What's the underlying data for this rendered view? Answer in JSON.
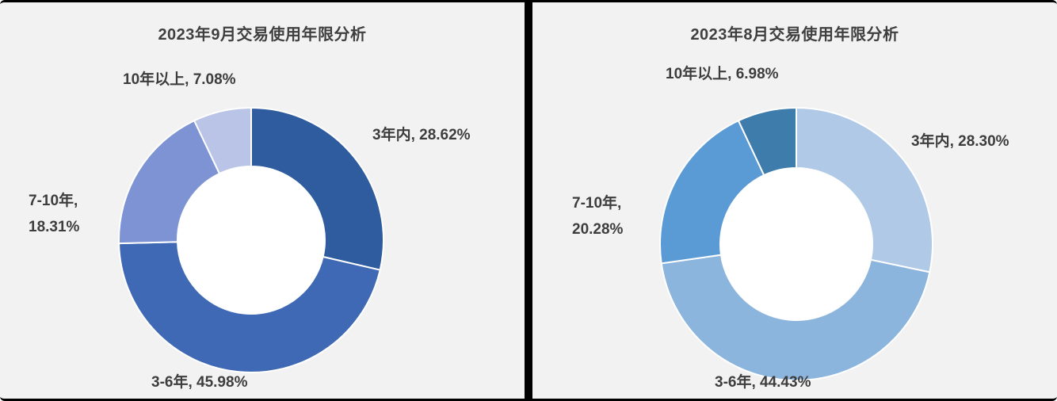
{
  "divider_color": "#000000",
  "background_color": "#f2f2f2",
  "chart_data": [
    {
      "type": "pie",
      "donut": true,
      "title": "2023年9月交易使用年限分析",
      "categories": [
        "3年内",
        "3-6年",
        "7-10年",
        "10年以上"
      ],
      "values": [
        28.62,
        45.98,
        18.31,
        7.08
      ],
      "labels": [
        "3年内, 28.62%",
        "3-6年, 45.98%",
        "7-10年, 18.31%",
        "10年以上, 7.08%"
      ],
      "colors": [
        "#2e5c9e",
        "#3f69b4",
        "#7e93d4",
        "#b9c4e7"
      ],
      "start_angle_deg": 0,
      "direction": "clockwise",
      "callouts": {
        "seg1": "3年内, 28.62%",
        "seg2": "3-6年, 45.98%",
        "seg3_line1": "7-10年,",
        "seg3_line2": "18.31%",
        "seg4": "10年以上, 7.08%"
      }
    },
    {
      "type": "pie",
      "donut": true,
      "title": "2023年8月交易使用年限分析",
      "categories": [
        "3年内",
        "3-6年",
        "7-10年",
        "10年以上"
      ],
      "values": [
        28.3,
        44.43,
        20.28,
        6.98
      ],
      "labels": [
        "3年内, 28.30%",
        "3-6年, 44.43%",
        "7-10年, 20.28%",
        "10年以上, 6.98%"
      ],
      "colors": [
        "#afc9e7",
        "#8bb5dc",
        "#5b9bd5",
        "#3e7cab"
      ],
      "start_angle_deg": 0,
      "direction": "clockwise",
      "callouts": {
        "seg1": "3年内, 28.30%",
        "seg2": "3-6年, 44.43%",
        "seg3_line1": "7-10年,",
        "seg3_line2": "20.28%",
        "seg4": "10年以上, 6.98%"
      }
    }
  ]
}
